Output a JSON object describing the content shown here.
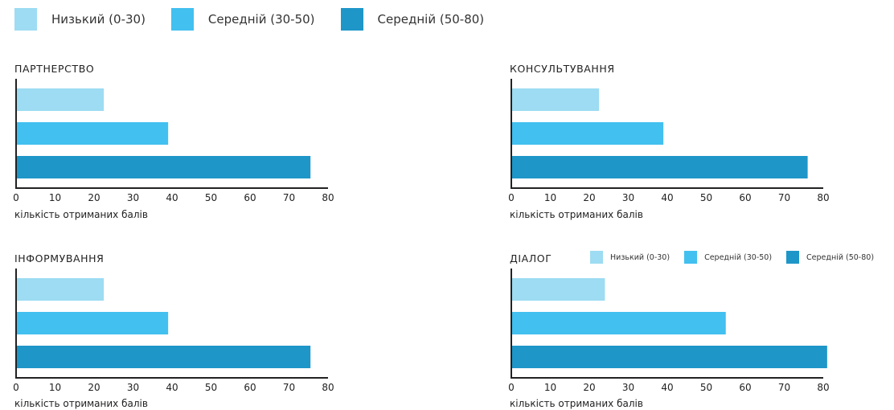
{
  "legend": {
    "items": [
      {
        "label": "Низький (0-30)",
        "color": "#9ddcf2"
      },
      {
        "label": "Середній (30-50)",
        "color": "#42c0ef"
      },
      {
        "label": "Середній (50-80)",
        "color": "#1e96c8"
      }
    ]
  },
  "chart_data": [
    {
      "type": "bar",
      "orientation": "horizontal",
      "title": "ПАРТНЕРСТВО",
      "xlabel": "кількість отриманих балів",
      "ylabel": "",
      "xlim": [
        0,
        80
      ],
      "ticks": [
        0,
        10,
        20,
        30,
        40,
        50,
        60,
        70,
        80
      ],
      "categories": [
        "Низький (0-30)",
        "Середній (30-50)",
        "Середній (50-80)"
      ],
      "values": [
        22.5,
        39,
        75.5
      ],
      "colors": [
        "#9ddcf2",
        "#42c0ef",
        "#1e96c8"
      ]
    },
    {
      "type": "bar",
      "orientation": "horizontal",
      "title": "КОНСУЛЬТУВАННЯ",
      "xlabel": "кількість отриманих балів",
      "ylabel": "",
      "xlim": [
        0,
        80
      ],
      "ticks": [
        0,
        10,
        20,
        30,
        40,
        50,
        60,
        70,
        80
      ],
      "categories": [
        "Низький (0-30)",
        "Середній (30-50)",
        "Середній (50-80)"
      ],
      "values": [
        22.5,
        39,
        76
      ],
      "colors": [
        "#9ddcf2",
        "#42c0ef",
        "#1e96c8"
      ]
    },
    {
      "type": "bar",
      "orientation": "horizontal",
      "title": "ІНФОРМУВАННЯ",
      "xlabel": "кількість отриманих балів",
      "ylabel": "",
      "xlim": [
        0,
        80
      ],
      "ticks": [
        0,
        10,
        20,
        30,
        40,
        50,
        60,
        70,
        80
      ],
      "categories": [
        "Низький (0-30)",
        "Середній (30-50)",
        "Середній (50-80)"
      ],
      "values": [
        22.5,
        39,
        75.5
      ],
      "colors": [
        "#9ddcf2",
        "#42c0ef",
        "#1e96c8"
      ]
    },
    {
      "type": "bar",
      "orientation": "horizontal",
      "title": "ДІАЛОГ",
      "xlabel": "кількість отриманих балів",
      "ylabel": "",
      "xlim": [
        0,
        80
      ],
      "ticks": [
        0,
        10,
        20,
        30,
        40,
        50,
        60,
        70,
        80
      ],
      "categories": [
        "Низький (0-30)",
        "Середній (30-50)",
        "Середній (50-80)"
      ],
      "values": [
        24,
        55,
        81
      ],
      "colors": [
        "#9ddcf2",
        "#42c0ef",
        "#1e96c8"
      ],
      "legend": "right-of-title"
    }
  ]
}
